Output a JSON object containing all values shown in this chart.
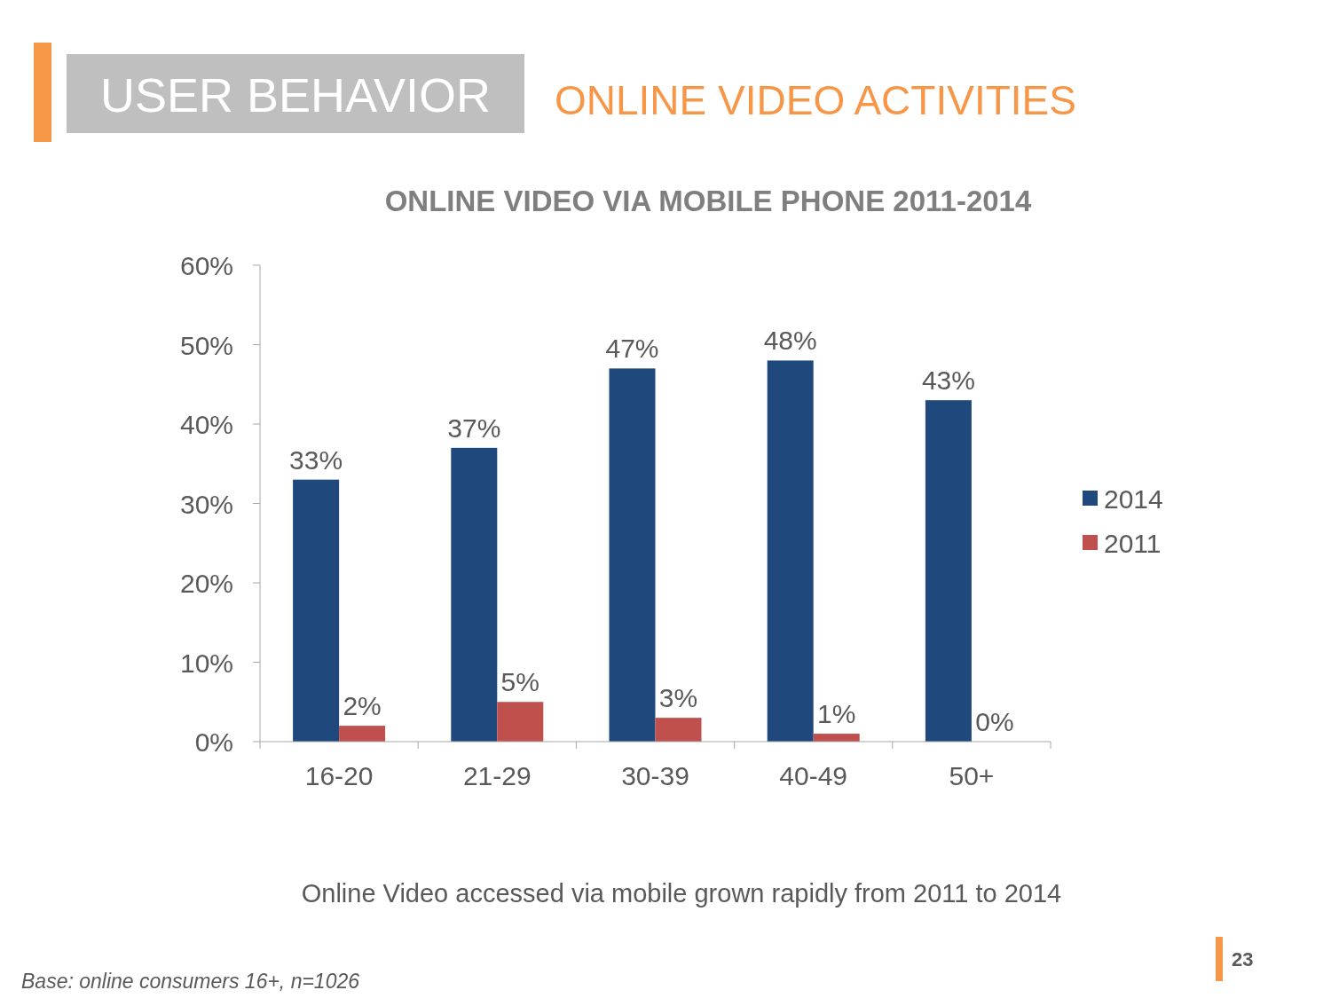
{
  "chart_data": {
    "type": "bar",
    "title": "ONLINE VIDEO VIA MOBILE PHONE 2011-2014",
    "annotations": [
      "USER BEHAVIOR",
      "ONLINE VIDEO ACTIVITIES",
      "Online Video accessed via mobile grown rapidly from 2011 to 2014",
      "Base: online consumers 16+, n=1026",
      "23"
    ],
    "categories": [
      "16-20",
      "21-29",
      "30-39",
      "40-49",
      "50+"
    ],
    "series": [
      {
        "name": "2014",
        "color": "#1f497d",
        "values": [
          33,
          37,
          47,
          48,
          43
        ],
        "value_labels": [
          "33%",
          "37%",
          "47%",
          "48%",
          "43%"
        ]
      },
      {
        "name": "2011",
        "color": "#c0504d",
        "values": [
          2,
          5,
          3,
          1,
          0
        ],
        "value_labels": [
          "2%",
          "5%",
          "3%",
          "1%",
          "0%"
        ]
      }
    ],
    "ylim": [
      0,
      60
    ],
    "yticks": [
      {
        "value": 0,
        "label": "0%"
      },
      {
        "value": 10,
        "label": "10%"
      },
      {
        "value": 20,
        "label": "20%"
      },
      {
        "value": 30,
        "label": "30%"
      },
      {
        "value": 40,
        "label": "40%"
      },
      {
        "value": 50,
        "label": "50%"
      },
      {
        "value": 60,
        "label": "60%"
      }
    ],
    "legend": "right",
    "grid": false
  }
}
